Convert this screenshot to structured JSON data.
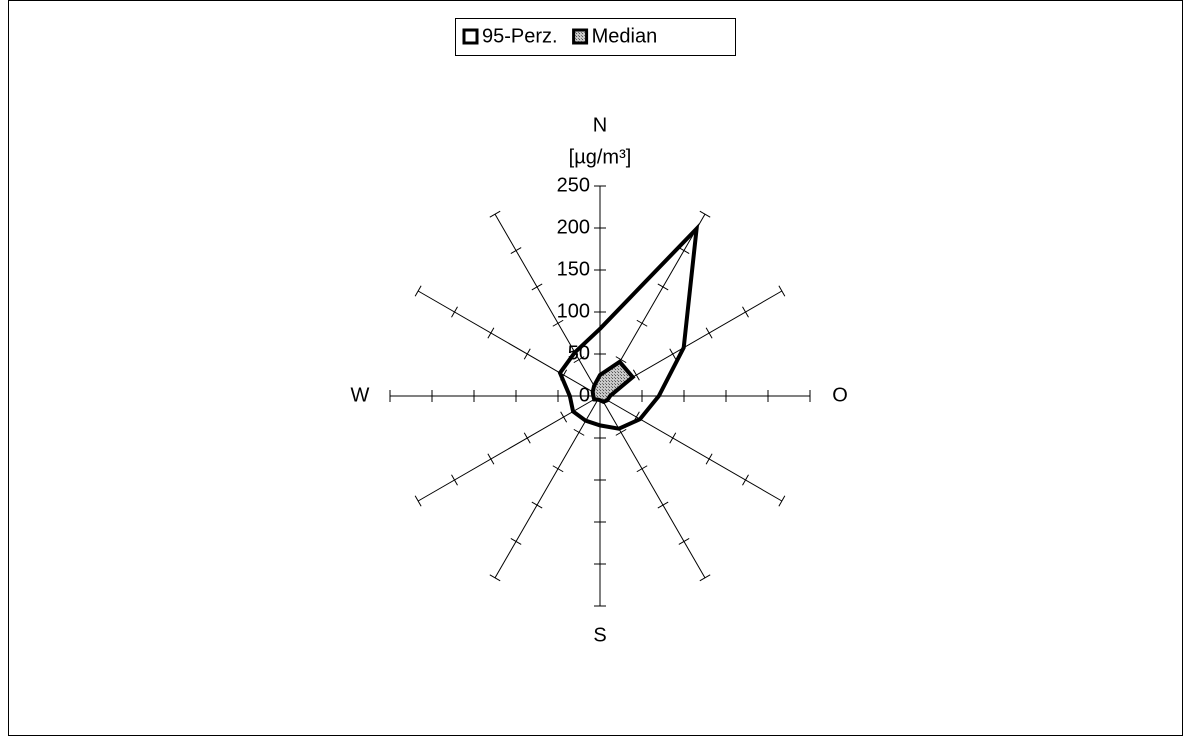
{
  "chart_data": {
    "type": "radar",
    "y_label": "[µg/m³]",
    "categories": [
      "N",
      null,
      null,
      "O",
      null,
      null,
      "S",
      null,
      null,
      "W",
      null,
      null
    ],
    "series": [
      {
        "name": "95-Perz.",
        "color": "#ffffff",
        "values": [
          80,
          230,
          115,
          70,
          55,
          45,
          35,
          34,
          37,
          36,
          55,
          60
        ]
      },
      {
        "name": "Median",
        "color": "#a0a0a0",
        "values": [
          25,
          47,
          45,
          12,
          10,
          8,
          5,
          5,
          8,
          8,
          10,
          14
        ]
      }
    ],
    "ylim": [
      0,
      250
    ],
    "yticks": [
      0,
      50,
      100,
      150,
      200,
      250
    ]
  }
}
